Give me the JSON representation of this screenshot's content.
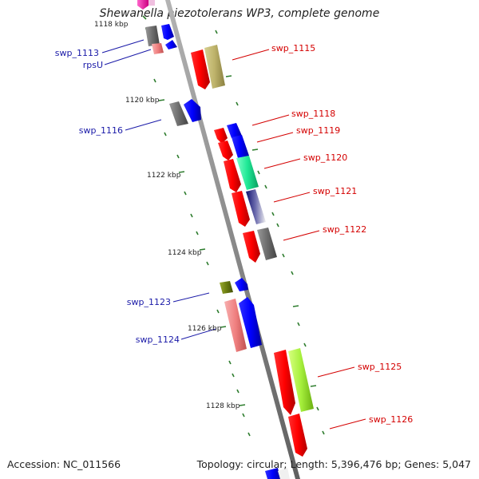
{
  "title": "Shewanella piezotolerans WP3, complete genome",
  "footer": {
    "accession": "Accession: NC_011566",
    "summary": "Topology: circular; Length: 5,396,476 bp; Genes: 5,047"
  },
  "scale_labels": [
    "1118 kbp",
    "1120 kbp",
    "1122 kbp",
    "1124 kbp",
    "1126 kbp",
    "1128 kbp"
  ],
  "genes_left": [
    {
      "name": "swp_1113"
    },
    {
      "name": "rpsU"
    },
    {
      "name": "swp_1116"
    },
    {
      "name": "swp_1123"
    },
    {
      "name": "swp_1124"
    }
  ],
  "genes_right": [
    {
      "name": "swp_1115"
    },
    {
      "name": "swp_1118"
    },
    {
      "name": "swp_1119"
    },
    {
      "name": "swp_1120"
    },
    {
      "name": "swp_1121"
    },
    {
      "name": "swp_1122"
    },
    {
      "name": "swp_1125"
    },
    {
      "name": "swp_1126"
    }
  ],
  "colors": {
    "left_label": "#1a1aa8",
    "right_label": "#d40000",
    "backbone": "#8a8a8a",
    "tick": "#2e7d2e"
  }
}
